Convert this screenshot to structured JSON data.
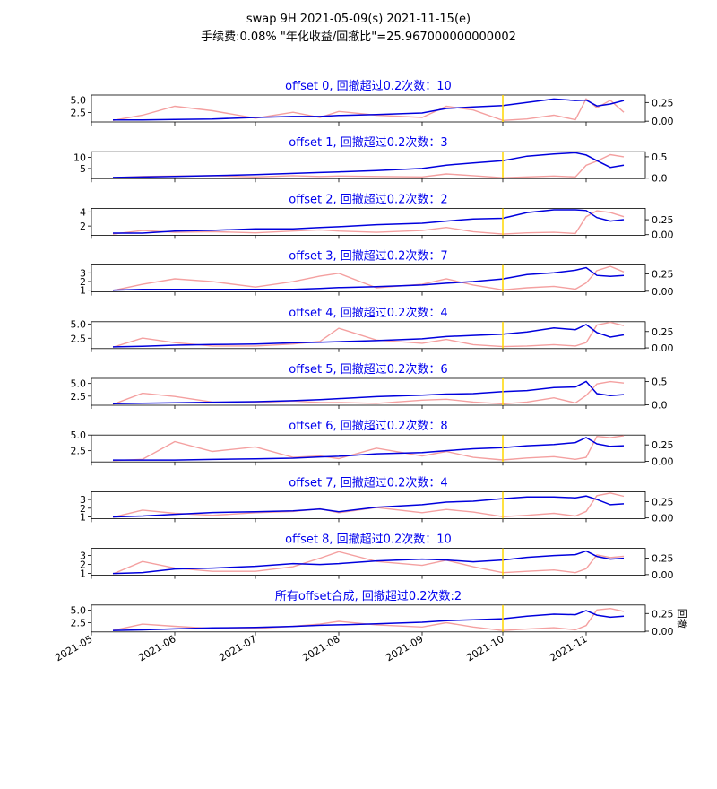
{
  "figure": {
    "title_line1": "swap 9H 2021-05-09(s) 2021-11-15(e)",
    "title_line2": "手续费:0.08% \"年化收益/回撤比\"=25.967000000000002",
    "right_axis_label": "回撤"
  },
  "chart_data": {
    "type": "line",
    "x_range": [
      "2021-05-01",
      "2021-11-23"
    ],
    "x_ticks": [
      "2021-05",
      "2021-06",
      "2021-07",
      "2021-08",
      "2021-09",
      "2021-10",
      "2021-11"
    ],
    "marker_date": "2021-10-01",
    "marker_color": "#ffd700",
    "equity_color": "#0000dd",
    "drawdown_color": "#f4a0a0",
    "subplot_title_color": "#0000ee",
    "x_points": [
      "2021-05-09",
      "2021-05-20",
      "2021-06-01",
      "2021-06-15",
      "2021-07-01",
      "2021-07-15",
      "2021-07-25",
      "2021-08-01",
      "2021-08-15",
      "2021-09-01",
      "2021-09-10",
      "2021-09-20",
      "2021-10-01",
      "2021-10-10",
      "2021-10-20",
      "2021-10-28",
      "2021-11-01",
      "2021-11-05",
      "2021-11-10",
      "2021-11-15"
    ],
    "panels": [
      {
        "title": "offset 0, 回撤超过0.2次数：10",
        "left_ticks": [
          "5.0",
          "2.5"
        ],
        "left_tick_values": [
          5.0,
          2.5
        ],
        "left_range": [
          0.6,
          6.0
        ],
        "right_ticks": [
          "0.25",
          "0.00"
        ],
        "right_tick_values": [
          0.25,
          0.0
        ],
        "right_range": [
          -0.01,
          0.35
        ],
        "equity": [
          1.0,
          1.0,
          1.1,
          1.2,
          1.5,
          1.7,
          1.7,
          1.9,
          2.1,
          2.4,
          3.3,
          3.6,
          3.9,
          4.5,
          5.2,
          4.9,
          5.0,
          3.8,
          4.2,
          4.9
        ],
        "drawdown": [
          0.01,
          0.08,
          0.2,
          0.14,
          0.04,
          0.12,
          0.05,
          0.13,
          0.08,
          0.05,
          0.2,
          0.15,
          0.01,
          0.03,
          0.08,
          0.02,
          0.3,
          0.18,
          0.28,
          0.12
        ]
      },
      {
        "title": "offset 1, 回撤超过0.2次数：3",
        "left_ticks": [
          "10",
          "5"
        ],
        "left_tick_values": [
          10,
          5
        ],
        "left_range": [
          0.5,
          12.5
        ],
        "right_ticks": [
          "0.5",
          "0.0"
        ],
        "right_tick_values": [
          0.5,
          0.0
        ],
        "right_range": [
          -0.01,
          0.62
        ],
        "equity": [
          1.0,
          1.2,
          1.5,
          1.8,
          2.3,
          2.8,
          3.2,
          3.5,
          4.1,
          5.0,
          6.5,
          7.5,
          8.5,
          10.5,
          11.5,
          12.0,
          11.0,
          8.5,
          5.5,
          6.5
        ],
        "drawdown": [
          0.01,
          0.04,
          0.05,
          0.06,
          0.03,
          0.06,
          0.04,
          0.05,
          0.04,
          0.03,
          0.1,
          0.06,
          0.01,
          0.03,
          0.05,
          0.03,
          0.3,
          0.4,
          0.55,
          0.5
        ]
      },
      {
        "title": "offset 2, 回撤超过0.2次数：2",
        "left_ticks": [
          "4",
          "2"
        ],
        "left_tick_values": [
          4,
          2
        ],
        "left_range": [
          0.7,
          4.5
        ],
        "right_ticks": [
          "0.25",
          "0.00"
        ],
        "right_tick_values": [
          0.25,
          0.0
        ],
        "right_range": [
          -0.01,
          0.44
        ],
        "equity": [
          1.0,
          1.0,
          1.3,
          1.4,
          1.6,
          1.6,
          1.8,
          1.9,
          2.2,
          2.4,
          2.7,
          3.0,
          3.1,
          3.9,
          4.3,
          4.3,
          4.2,
          3.2,
          2.7,
          2.9
        ],
        "drawdown": [
          0.01,
          0.07,
          0.04,
          0.05,
          0.03,
          0.06,
          0.08,
          0.06,
          0.04,
          0.07,
          0.12,
          0.05,
          0.01,
          0.03,
          0.04,
          0.02,
          0.3,
          0.4,
          0.37,
          0.3
        ]
      },
      {
        "title": "offset 3, 回撤超过0.2次数：7",
        "left_ticks": [
          "3",
          "2",
          "1"
        ],
        "left_tick_values": [
          3,
          2,
          1
        ],
        "left_range": [
          0.8,
          3.9
        ],
        "right_ticks": [
          "0.25",
          "0.00"
        ],
        "right_tick_values": [
          0.25,
          0.0
        ],
        "right_range": [
          -0.01,
          0.38
        ],
        "equity": [
          1.0,
          1.1,
          1.1,
          1.1,
          1.1,
          1.1,
          1.2,
          1.3,
          1.4,
          1.6,
          1.8,
          2.0,
          2.3,
          2.8,
          3.0,
          3.3,
          3.6,
          2.7,
          2.6,
          2.7
        ],
        "drawdown": [
          0.01,
          0.1,
          0.18,
          0.14,
          0.06,
          0.14,
          0.22,
          0.26,
          0.05,
          0.1,
          0.18,
          0.09,
          0.02,
          0.05,
          0.07,
          0.03,
          0.12,
          0.3,
          0.36,
          0.28
        ]
      },
      {
        "title": "offset 4, 回撤超过0.2次数：4",
        "left_ticks": [
          "5.0",
          "2.5"
        ],
        "left_tick_values": [
          5.0,
          2.5
        ],
        "left_range": [
          0.7,
          5.4
        ],
        "right_ticks": [
          "0.25",
          "0.00"
        ],
        "right_tick_values": [
          0.25,
          0.0
        ],
        "right_range": [
          -0.01,
          0.4
        ],
        "equity": [
          1.0,
          1.1,
          1.3,
          1.4,
          1.5,
          1.7,
          1.8,
          1.9,
          2.1,
          2.4,
          2.8,
          3.0,
          3.2,
          3.6,
          4.3,
          4.0,
          4.9,
          3.5,
          2.7,
          3.1
        ],
        "drawdown": [
          0.01,
          0.15,
          0.08,
          0.03,
          0.03,
          0.06,
          0.1,
          0.3,
          0.12,
          0.07,
          0.13,
          0.05,
          0.02,
          0.03,
          0.05,
          0.03,
          0.08,
          0.35,
          0.39,
          0.34
        ]
      },
      {
        "title": "offset 5, 回撤超过0.2次数：6",
        "left_ticks": [
          "5.0",
          "2.5"
        ],
        "left_tick_values": [
          5.0,
          2.5
        ],
        "left_range": [
          0.7,
          6.0
        ],
        "right_ticks": [
          "0.5",
          "0.0"
        ],
        "right_tick_values": [
          0.5,
          0.0
        ],
        "right_range": [
          -0.01,
          0.57
        ],
        "equity": [
          1.0,
          1.1,
          1.2,
          1.3,
          1.4,
          1.6,
          1.8,
          2.0,
          2.4,
          2.7,
          2.9,
          3.0,
          3.4,
          3.6,
          4.2,
          4.3,
          5.4,
          3.0,
          2.6,
          2.8
        ],
        "drawdown": [
          0.01,
          0.25,
          0.18,
          0.06,
          0.05,
          0.08,
          0.05,
          0.05,
          0.03,
          0.1,
          0.12,
          0.06,
          0.02,
          0.06,
          0.15,
          0.04,
          0.2,
          0.45,
          0.5,
          0.47
        ]
      },
      {
        "title": "offset 6, 回撤超过0.2次数：8",
        "left_ticks": [
          "5.0",
          "2.5"
        ],
        "left_tick_values": [
          5.0,
          2.5
        ],
        "left_range": [
          0.7,
          5.0
        ],
        "right_ticks": [
          "0.25",
          "0.00"
        ],
        "right_tick_values": [
          0.25,
          0.0
        ],
        "right_range": [
          -0.01,
          0.4
        ],
        "equity": [
          1.0,
          1.0,
          1.0,
          1.1,
          1.2,
          1.3,
          1.5,
          1.6,
          2.0,
          2.2,
          2.5,
          2.8,
          3.0,
          3.3,
          3.5,
          3.8,
          4.6,
          3.6,
          3.2,
          3.3
        ],
        "drawdown": [
          0.01,
          0.03,
          0.3,
          0.15,
          0.22,
          0.06,
          0.08,
          0.04,
          0.2,
          0.08,
          0.15,
          0.06,
          0.02,
          0.05,
          0.07,
          0.03,
          0.06,
          0.38,
          0.36,
          0.39
        ]
      },
      {
        "title": "offset 7, 回撤超过0.2次数：4",
        "left_ticks": [
          "3",
          "2",
          "1"
        ],
        "left_tick_values": [
          3,
          2,
          1
        ],
        "left_range": [
          0.8,
          3.9
        ],
        "right_ticks": [
          "0.25",
          "0.00"
        ],
        "right_tick_values": [
          0.25,
          0.0
        ],
        "right_range": [
          -0.01,
          0.4
        ],
        "equity": [
          1.0,
          1.1,
          1.3,
          1.5,
          1.6,
          1.7,
          1.9,
          1.6,
          2.1,
          2.4,
          2.7,
          2.8,
          3.1,
          3.3,
          3.3,
          3.2,
          3.4,
          3.0,
          2.4,
          2.5
        ],
        "drawdown": [
          0.01,
          0.12,
          0.07,
          0.04,
          0.08,
          0.1,
          0.14,
          0.08,
          0.16,
          0.08,
          0.13,
          0.09,
          0.02,
          0.04,
          0.07,
          0.03,
          0.1,
          0.34,
          0.38,
          0.33
        ]
      },
      {
        "title": "offset 8, 回撤超过0.2次数：10",
        "left_ticks": [
          "3",
          "2",
          "1"
        ],
        "left_tick_values": [
          3,
          2,
          1
        ],
        "left_range": [
          0.8,
          3.8
        ],
        "right_ticks": [
          "0.25",
          "0.00"
        ],
        "right_tick_values": [
          0.25,
          0.0
        ],
        "right_range": [
          -0.01,
          0.4
        ],
        "equity": [
          1.0,
          1.1,
          1.5,
          1.6,
          1.8,
          2.1,
          2.0,
          2.1,
          2.4,
          2.6,
          2.5,
          2.3,
          2.5,
          2.8,
          3.0,
          3.1,
          3.5,
          2.9,
          2.6,
          2.7
        ],
        "drawdown": [
          0.01,
          0.2,
          0.1,
          0.05,
          0.05,
          0.12,
          0.25,
          0.35,
          0.2,
          0.14,
          0.22,
          0.12,
          0.03,
          0.05,
          0.07,
          0.03,
          0.09,
          0.3,
          0.26,
          0.28
        ]
      },
      {
        "title": "所有offset合成, 回撤超过0.2次数:2",
        "left_ticks": [
          "5.0",
          "2.5"
        ],
        "left_tick_values": [
          5.0,
          2.5
        ],
        "left_range": [
          0.7,
          6.0
        ],
        "right_ticks": [
          "0.25",
          "0.00"
        ],
        "right_tick_values": [
          0.25,
          0.0
        ],
        "right_range": [
          -0.01,
          0.37
        ],
        "equity": [
          1.0,
          1.1,
          1.3,
          1.5,
          1.6,
          1.8,
          2.0,
          2.1,
          2.3,
          2.6,
          2.9,
          3.1,
          3.3,
          3.8,
          4.2,
          4.1,
          4.9,
          4.0,
          3.6,
          3.8
        ],
        "drawdown": [
          0.01,
          0.1,
          0.07,
          0.04,
          0.04,
          0.07,
          0.1,
          0.14,
          0.09,
          0.06,
          0.12,
          0.06,
          0.01,
          0.03,
          0.05,
          0.02,
          0.08,
          0.3,
          0.32,
          0.28
        ]
      }
    ]
  }
}
